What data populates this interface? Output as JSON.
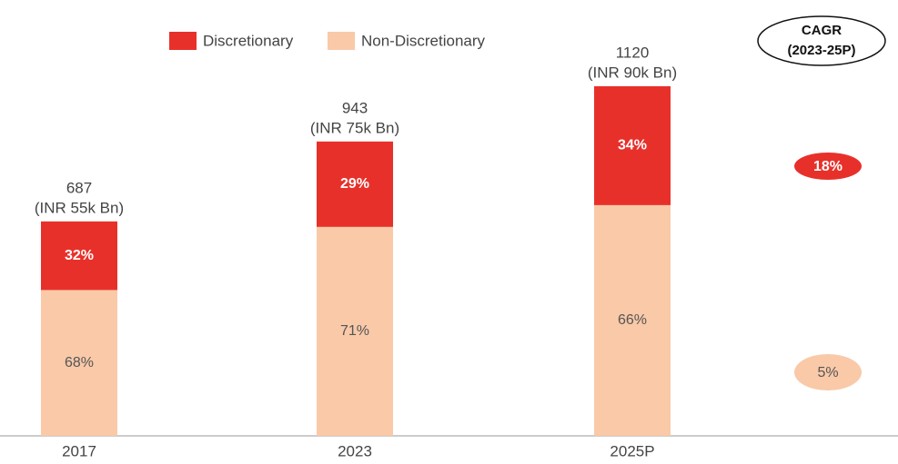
{
  "chart_data": {
    "type": "bar",
    "categories": [
      "2017",
      "2023",
      "2025P"
    ],
    "totals": [
      687,
      943,
      1120
    ],
    "total_notes": [
      "(INR 55k Bn)",
      "(INR 75k Bn)",
      "(INR 90k Bn)"
    ],
    "series": [
      {
        "name": "Discretionary",
        "color": "#e8302a",
        "values": [
          32,
          29,
          34
        ],
        "value_labels": [
          "32%",
          "29%",
          "34%"
        ],
        "cagr": 18,
        "cagr_label": "18%"
      },
      {
        "name": "Non-Discretionary",
        "color": "#f9c9a8",
        "values": [
          68,
          71,
          66
        ],
        "value_labels": [
          "68%",
          "71%",
          "66%"
        ],
        "cagr": 5,
        "cagr_label": "5%"
      }
    ],
    "cagr_title": [
      "CAGR",
      "(2023-25P)"
    ]
  }
}
